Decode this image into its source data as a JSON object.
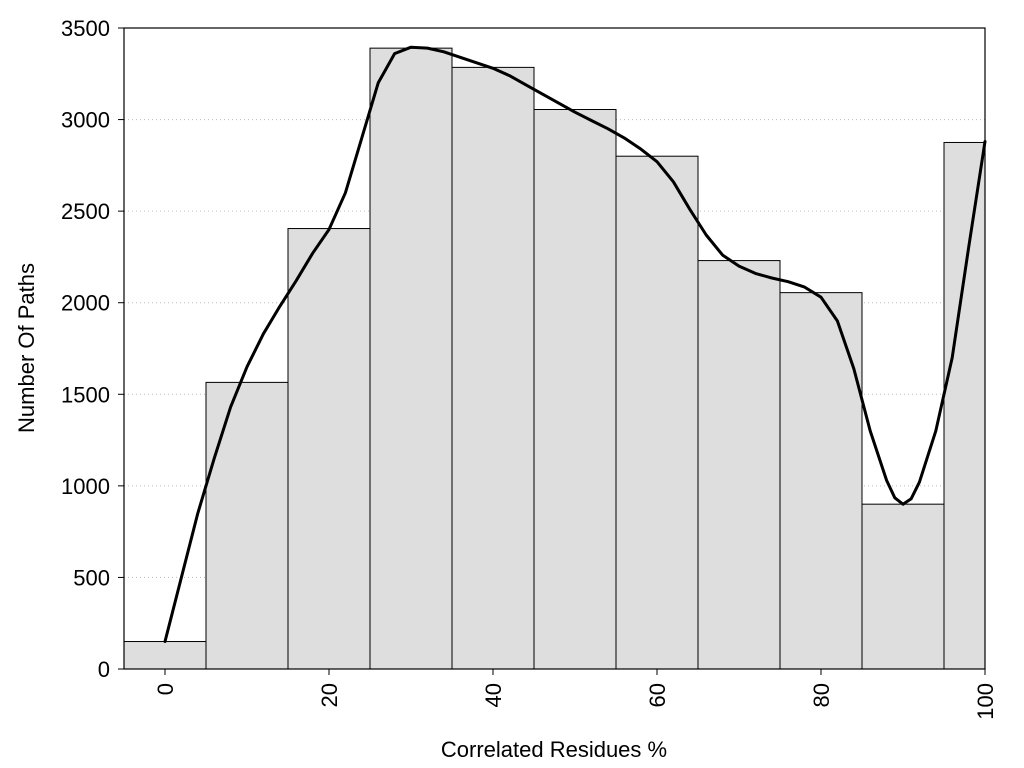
{
  "chart_data": {
    "type": "bar",
    "title": "",
    "xlabel": "Correlated Residues %",
    "ylabel": "Number Of Paths",
    "xlim": [
      -5,
      100
    ],
    "ylim": [
      0,
      3500
    ],
    "x_ticks": [
      0,
      20,
      40,
      60,
      80,
      100
    ],
    "y_ticks": [
      0,
      500,
      1000,
      1500,
      2000,
      2500,
      3000,
      3500
    ],
    "bin_width": 10,
    "grid": "horizontal dotted",
    "bar_color": "#dedede",
    "bar_edge_color": "#000000",
    "categories": [
      0,
      10,
      20,
      30,
      40,
      50,
      60,
      70,
      80,
      90,
      100
    ],
    "values": [
      150,
      1565,
      2405,
      3390,
      3285,
      3055,
      2800,
      2230,
      2055,
      900,
      2875
    ],
    "curve": {
      "type": "line",
      "color": "#000000",
      "x": [
        0,
        2,
        4,
        6,
        8,
        10,
        12,
        14,
        16,
        18,
        20,
        22,
        24,
        26,
        28,
        30,
        32,
        34,
        36,
        38,
        40,
        42,
        44,
        46,
        48,
        50,
        52,
        54,
        56,
        58,
        60,
        62,
        64,
        66,
        68,
        70,
        72,
        74,
        76,
        78,
        80,
        82,
        84,
        86,
        88,
        89,
        90,
        91,
        92,
        94,
        96,
        98,
        100
      ],
      "y": [
        150,
        500,
        850,
        1150,
        1430,
        1650,
        1830,
        1980,
        2120,
        2270,
        2400,
        2600,
        2900,
        3200,
        3360,
        3395,
        3390,
        3370,
        3340,
        3310,
        3280,
        3240,
        3190,
        3140,
        3090,
        3040,
        2995,
        2950,
        2900,
        2840,
        2770,
        2660,
        2510,
        2370,
        2260,
        2200,
        2160,
        2135,
        2115,
        2085,
        2030,
        1900,
        1640,
        1300,
        1030,
        935,
        900,
        930,
        1020,
        1300,
        1700,
        2300,
        2880
      ]
    }
  }
}
